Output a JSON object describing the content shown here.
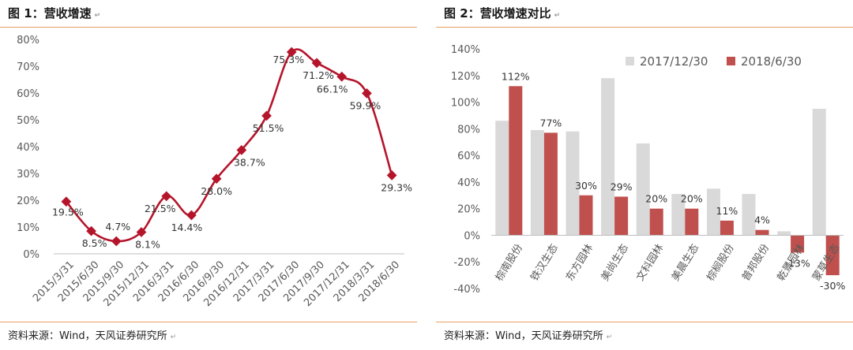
{
  "left_panel": {
    "title": "图 1：营收增速",
    "source": "资料来源：Wind，天风证券研究所",
    "mark": "↵"
  },
  "right_panel": {
    "title": "图 2：营收增速对比",
    "source": "资料来源：Wind，天风证券研究所",
    "mark": "↵"
  },
  "colors": {
    "line": "#b5152b",
    "bar_2017": "#d9d9d9",
    "bar_2018": "#c0504d",
    "rule": "#e8a060"
  },
  "chart_data": [
    {
      "type": "line",
      "title": "",
      "x": [
        "2015/3/31",
        "2015/6/30",
        "2015/9/30",
        "2015/12/31",
        "2016/3/31",
        "2016/6/30",
        "2016/9/30",
        "2016/12/31",
        "2017/3/31",
        "2017/6/30",
        "2017/9/30",
        "2017/12/31",
        "2018/3/31",
        "2018/6/30"
      ],
      "values": [
        19.5,
        8.5,
        4.7,
        8.1,
        21.5,
        14.4,
        28.0,
        38.7,
        51.5,
        75.3,
        71.2,
        66.1,
        59.9,
        29.3
      ],
      "data_labels": [
        "19.5%",
        "8.5%",
        "4.7%",
        "8.1%",
        "21.5%",
        "14.4%",
        "28.0%",
        "38.7%",
        "51.5%",
        "75.3%",
        "71.2%",
        "66.1%",
        "59.9%",
        "29.3%"
      ],
      "yticks": [
        "0%",
        "10%",
        "20%",
        "30%",
        "40%",
        "50%",
        "60%",
        "70%",
        "80%"
      ],
      "ylim": [
        0,
        80
      ],
      "grid": false,
      "legend": "none"
    },
    {
      "type": "bar",
      "title": "",
      "categories": [
        "棕南股份",
        "铁汉生态",
        "东方园林",
        "美尚生态",
        "文科园林",
        "美晨生态",
        "棕榈股份",
        "普邦股份",
        "乾景园林",
        "蒙草生态"
      ],
      "series": [
        {
          "name": "2017/12/30",
          "values": [
            86,
            79,
            78,
            118,
            69,
            31,
            35,
            31,
            3,
            95
          ],
          "labels": [
            "",
            "",
            "",
            "",
            "",
            "",
            "",
            "",
            "",
            ""
          ]
        },
        {
          "name": "2018/6/30",
          "values": [
            112,
            77,
            30,
            29,
            20,
            20,
            11,
            4,
            -13,
            -30
          ],
          "labels": [
            "112%",
            "77%",
            "30%",
            "29%",
            "20%",
            "20%",
            "11%",
            "4%",
            "-13%",
            "-30%"
          ]
        }
      ],
      "yticks": [
        "-40%",
        "-20%",
        "0%",
        "20%",
        "40%",
        "60%",
        "80%",
        "100%",
        "120%",
        "140%"
      ],
      "ylim": [
        -40,
        140
      ],
      "grid": false,
      "legend": "top"
    }
  ]
}
